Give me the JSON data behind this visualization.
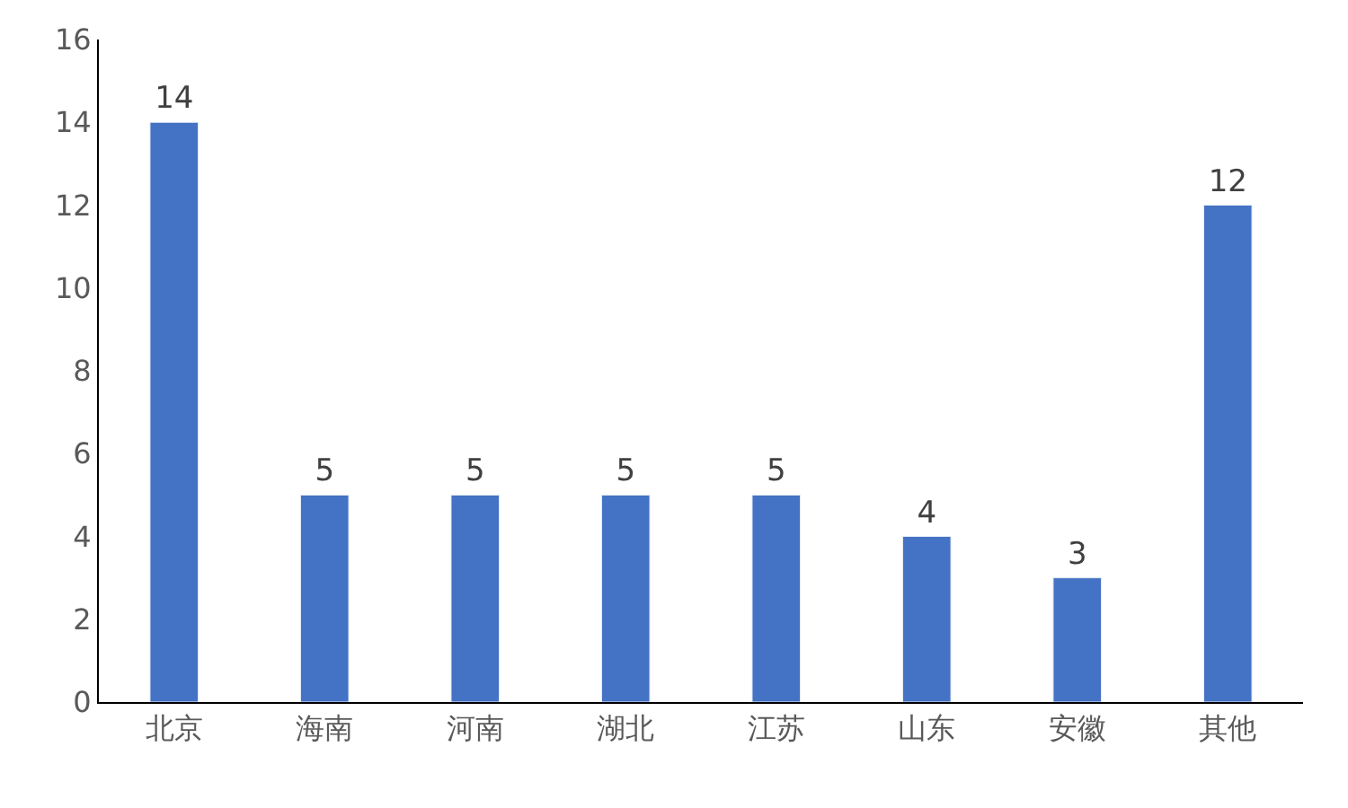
{
  "chart_data": {
    "type": "bar",
    "categories": [
      "北京",
      "海南",
      "河南",
      "湖北",
      "江苏",
      "山东",
      "安徽",
      "其他"
    ],
    "values": [
      14,
      5,
      5,
      5,
      5,
      4,
      3,
      12
    ],
    "color": "#4472c4",
    "ylim": [
      0,
      16
    ],
    "yticks": [
      0,
      2,
      4,
      6,
      8,
      10,
      12,
      14,
      16
    ],
    "data_labels": true
  }
}
